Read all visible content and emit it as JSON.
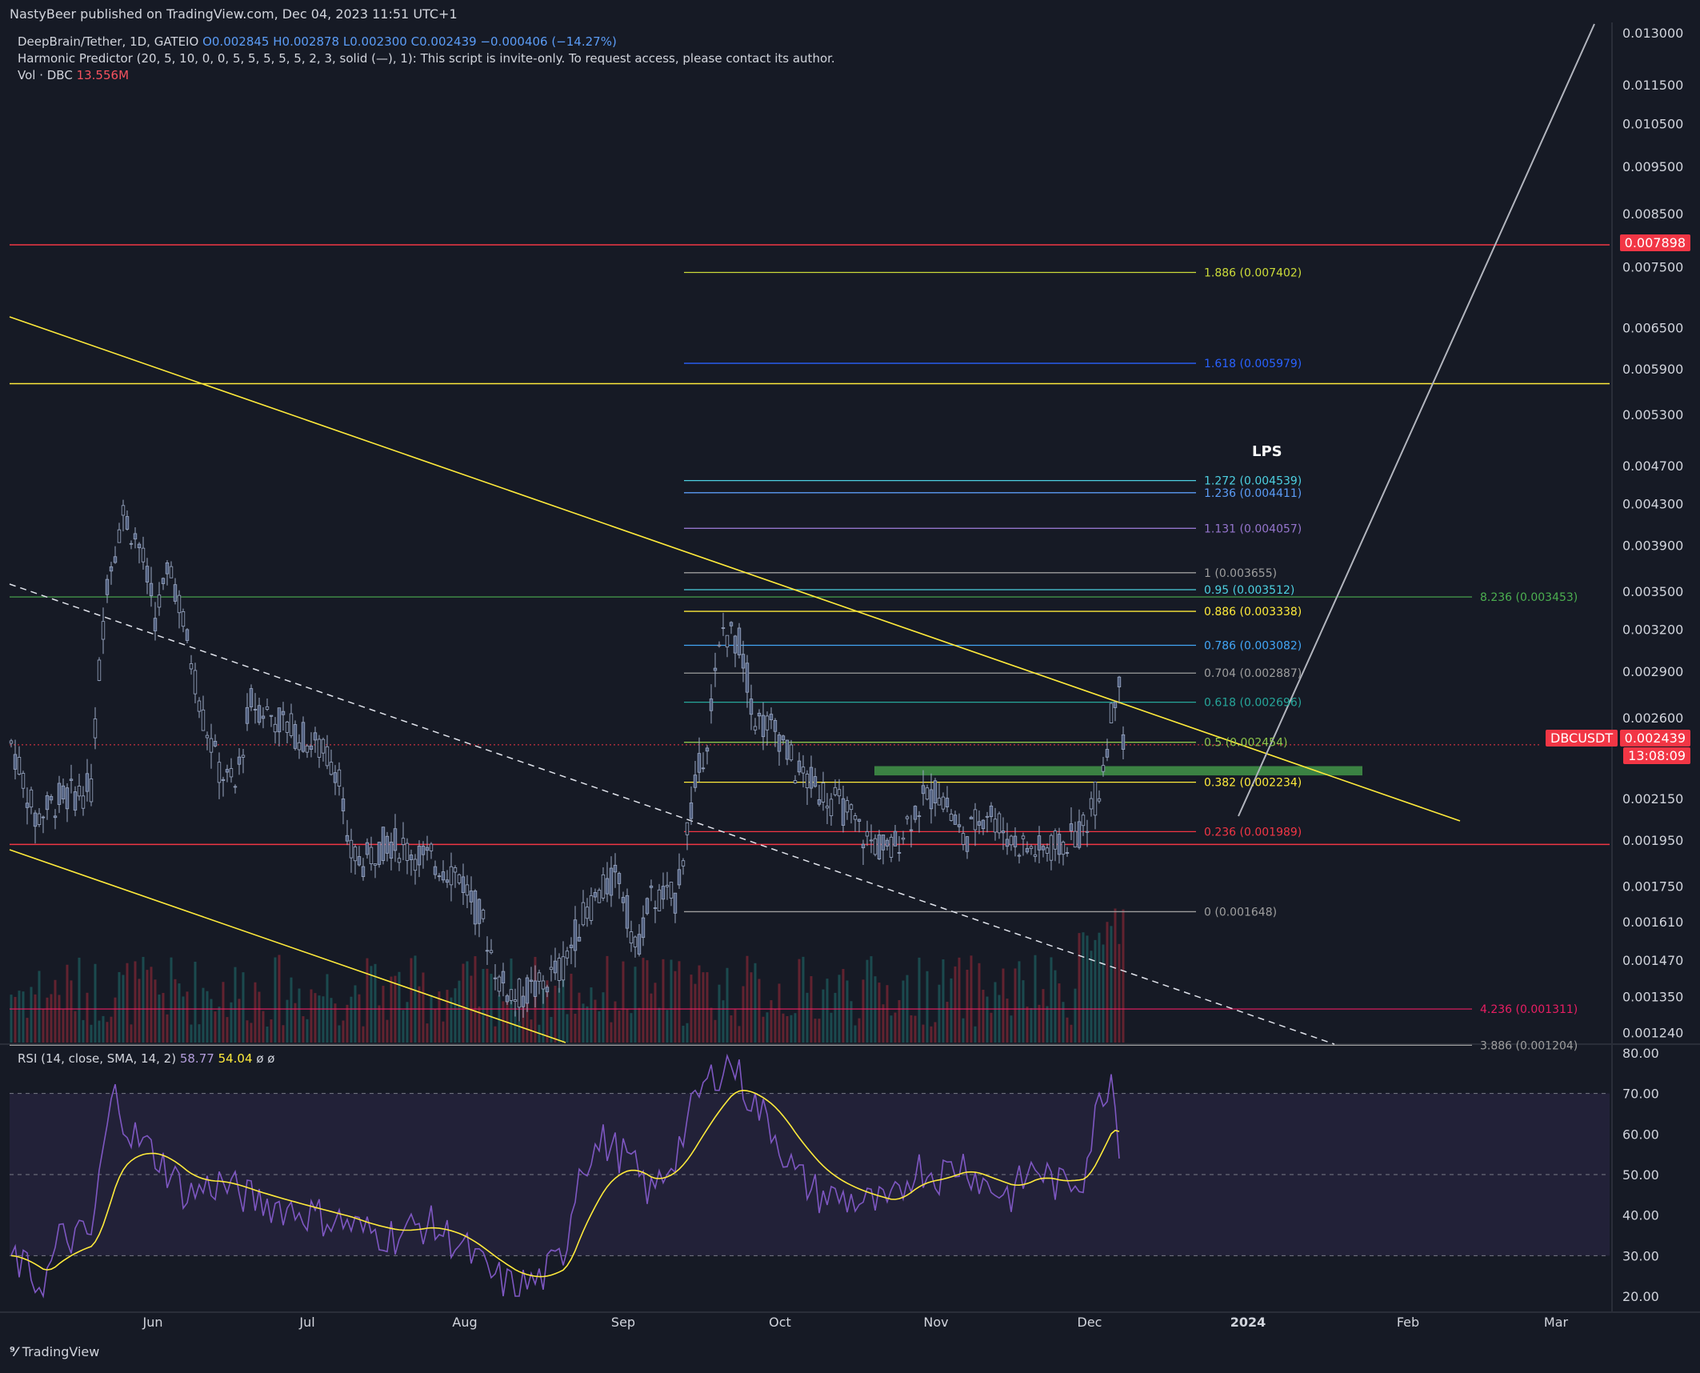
{
  "header": {
    "publisher": "NastyBeer published on TradingView.com, Dec 04, 2023 11:51 UTC+1"
  },
  "legend": {
    "symbol_line": "DeepBrain/Tether, 1D, GATEIO",
    "o": "O0.002845",
    "h": "H0.002878",
    "l": "L0.002300",
    "c": "C0.002439",
    "change": "−0.000406 (−14.27%)",
    "indicator": "Harmonic Predictor (20, 5, 10, 0, 0, 5, 5, 5, 5, 5, 2, 3, solid (—), 1): This script is invite-only. To request access, please contact its author.",
    "vol_label": "Vol · DBC",
    "vol_value": "13.556M"
  },
  "rsi_legend": {
    "label": "RSI (14, close, SMA, 14, 2)",
    "rsi": "58.77",
    "sma": "54.04",
    "extra": "ø ø"
  },
  "footer": {
    "brand": "TradingView"
  },
  "tags": {
    "red_level": "0.007898",
    "symbol": "DBCUSDT",
    "last_price": "0.002439",
    "countdown": "13:08:09"
  },
  "annotations": {
    "lps": "LPS"
  },
  "colors": {
    "background": "#161a25",
    "up": "#5b6a8a",
    "down": "#8a9ab8",
    "red": "#f23645",
    "yellow": "#ffeb3b",
    "rsi": "#7e57c2",
    "rsi_ma": "#ffeb3b",
    "green_zone": "#4caf50"
  },
  "chart_data": {
    "type": "candlestick",
    "price_axis": {
      "type": "log",
      "ticks": [
        "0.013000",
        "0.011500",
        "0.010500",
        "0.009500",
        "0.008500",
        "0.007500",
        "0.006500",
        "0.005900",
        "0.005300",
        "0.004700",
        "0.004300",
        "0.003900",
        "0.003500",
        "0.003200",
        "0.002900",
        "0.002600",
        "0.002150",
        "0.001950",
        "0.001750",
        "0.001610",
        "0.001470",
        "0.001350",
        "0.001240"
      ]
    },
    "time_axis": {
      "ticks": [
        "Jun",
        "Jul",
        "Aug",
        "Sep",
        "Oct",
        "Nov",
        "Dec",
        "2024",
        "Feb",
        "Mar"
      ]
    },
    "rsi_axis": {
      "ticks": [
        "80.00",
        "70.00",
        "60.00",
        "50.00",
        "40.00",
        "30.00",
        "20.00"
      ],
      "bands": [
        30,
        70
      ]
    },
    "fib_levels": [
      {
        "label": "1.886 (0.007402)",
        "value": 0.007402,
        "color": "#cddc39"
      },
      {
        "label": "1.618 (0.005979)",
        "value": 0.005979,
        "color": "#2962ff"
      },
      {
        "label": "1.272 (0.004539)",
        "value": 0.004539,
        "color": "#4dd0e1"
      },
      {
        "label": "1.236 (0.004411)",
        "value": 0.004411,
        "color": "#5b9cf6"
      },
      {
        "label": "1.131 (0.004057)",
        "value": 0.004057,
        "color": "#9575cd"
      },
      {
        "label": "1 (0.003655)",
        "value": 0.003655,
        "color": "#9e9e9e"
      },
      {
        "label": "0.95 (0.003512)",
        "value": 0.003512,
        "color": "#4dd0e1"
      },
      {
        "label": "0.886 (0.003338)",
        "value": 0.003338,
        "color": "#ffeb3b"
      },
      {
        "label": "0.786 (0.003082)",
        "value": 0.003082,
        "color": "#42a5f5"
      },
      {
        "label": "0.704 (0.002887)",
        "value": 0.002887,
        "color": "#9e9e9e"
      },
      {
        "label": "0.618 (0.002696)",
        "value": 0.002696,
        "color": "#26a69a"
      },
      {
        "label": "0.5 (0.002454)",
        "value": 0.002454,
        "color": "#8bc34a"
      },
      {
        "label": "0.382 (0.002234)",
        "value": 0.002234,
        "color": "#ffeb3b"
      },
      {
        "label": "0.236 (0.001989)",
        "value": 0.001989,
        "color": "#f23645"
      },
      {
        "label": "0 (0.001648)",
        "value": 0.001648,
        "color": "#9e9e9e"
      }
    ],
    "ext_levels": [
      {
        "label": "8.236 (0.003453)",
        "value": 0.003453,
        "color": "#4caf50"
      },
      {
        "label": "4.236 (0.001311)",
        "value": 0.001311,
        "color": "#e91e63"
      },
      {
        "label": "3.886 (0.001204)",
        "value": 0.001204,
        "color": "#9e9e9e"
      }
    ],
    "horizontal_lines": [
      {
        "value": 0.007898,
        "color": "#f23645"
      },
      {
        "value": 0.0057,
        "color": "#ffeb3b"
      },
      {
        "value": 0.00193,
        "color": "#f23645"
      }
    ],
    "green_zone": {
      "price_low": 0.00227,
      "price_high": 0.00232
    },
    "rsi_current": 58.77,
    "rsi_sma_current": 54.04
  }
}
